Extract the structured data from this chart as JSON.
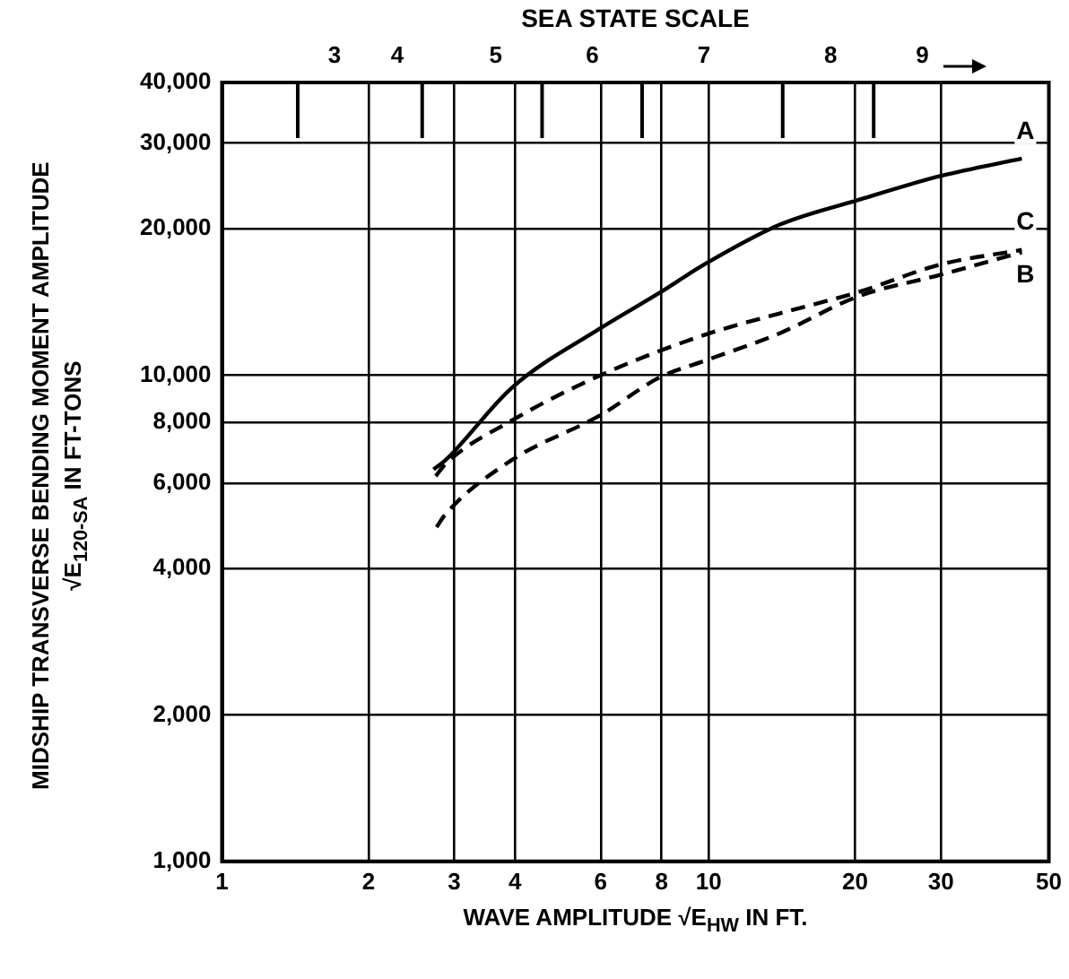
{
  "chart_data": {
    "type": "line",
    "title": "SEA STATE SCALE",
    "xlabel": "WAVE AMPLITUDE √E$_{HW}$ IN FT.",
    "ylabel": "MIDSHIP TRANSVERSE BENDING MOMENT AMPLITUDE\n√E$_{120-SA}$ IN FT-TONS",
    "log": "xy",
    "grid": true,
    "legend": false,
    "marker": "none",
    "xlim": [
      1,
      50
    ],
    "xticks": [
      1,
      2,
      3,
      4,
      6,
      8,
      10,
      20,
      30,
      50
    ],
    "ylim": [
      1000,
      40000
    ],
    "yticks": [
      {
        "value": 1000,
        "label": "1,000"
      },
      {
        "value": 2000,
        "label": "2,000"
      },
      {
        "value": 4000,
        "label": "4,000"
      },
      {
        "value": 6000,
        "label": "6,000"
      },
      {
        "value": 8000,
        "label": "8,000"
      },
      {
        "value": 10000,
        "label": "10,000"
      },
      {
        "value": 20000,
        "label": "20,000"
      },
      {
        "value": 30000,
        "label": "30,000"
      },
      {
        "value": 40000,
        "label": "40,000"
      }
    ],
    "annotations": [
      "3",
      "4",
      "5",
      "6",
      "7",
      "8",
      "9"
    ],
    "series": [
      {
        "name": "A",
        "color": "#000000",
        "line_style": "solid",
        "x": [
          2.72,
          2.88,
          3.94,
          6.0,
          7.95,
          9.8,
          14.0,
          20.2,
          30,
          44
        ],
        "values": [
          6400,
          6690,
          9420,
          12500,
          14800,
          16900,
          20400,
          22900,
          25700,
          27900
        ]
      },
      {
        "name": "B",
        "color": "#000000",
        "line_style": "dashed",
        "x": [
          2.76,
          2.88,
          3.94,
          6.0,
          7.95,
          9.8,
          14.0,
          20.2,
          30,
          44
        ],
        "values": [
          4870,
          5180,
          6690,
          8280,
          9910,
          10700,
          12200,
          14500,
          16100,
          17900
        ]
      },
      {
        "name": "C",
        "color": "#000000",
        "line_style": "dashed",
        "x": [
          2.75,
          2.88,
          3.94,
          6.0,
          9.8,
          14.0,
          20.2,
          30,
          44
        ],
        "values": [
          6200,
          6570,
          8070,
          10000,
          12100,
          13400,
          14800,
          16900,
          18100
        ]
      }
    ]
  }
}
